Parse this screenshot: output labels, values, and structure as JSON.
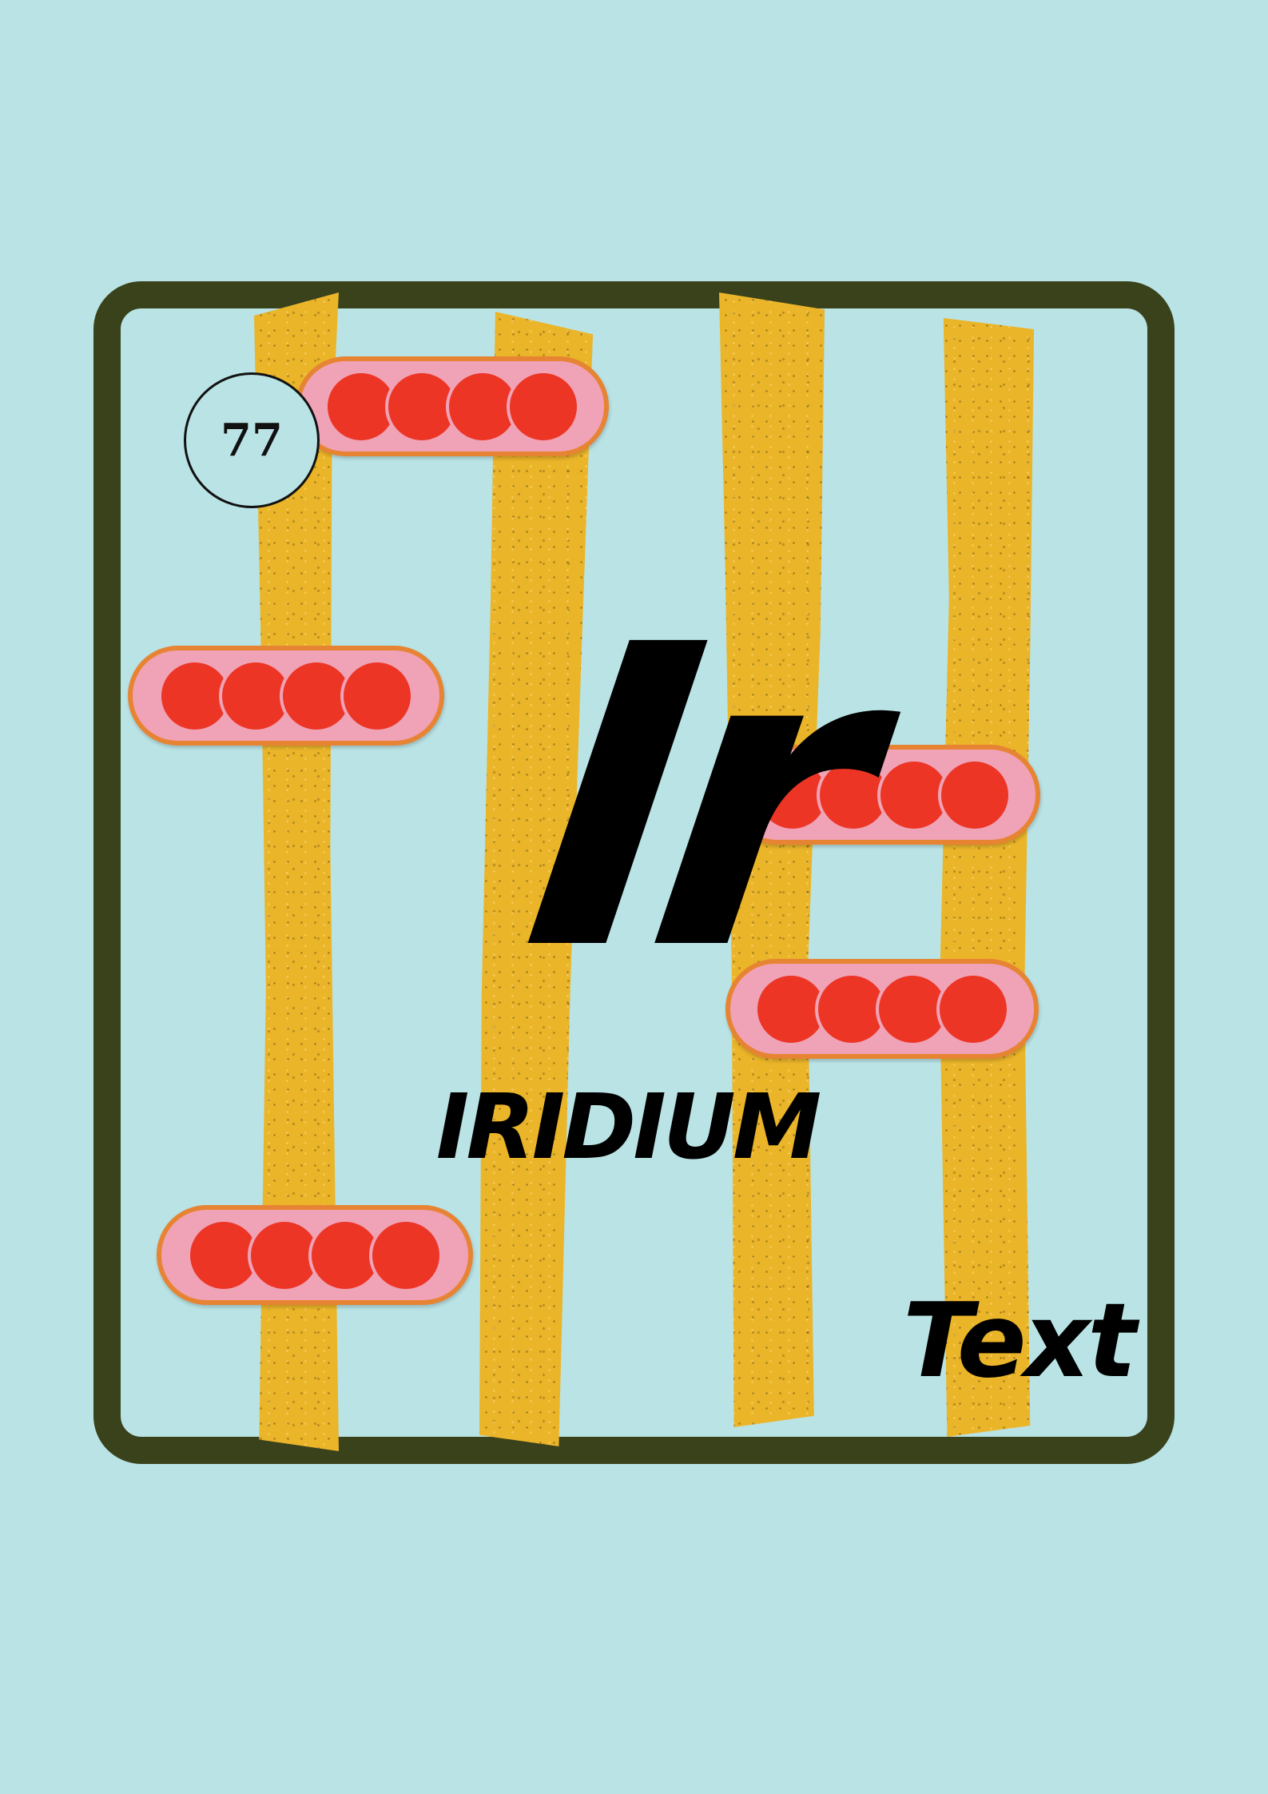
{
  "element": {
    "atomic_number": "77",
    "symbol": "Ir",
    "name": "IRIDIUM",
    "caption": "Text"
  },
  "colors": {
    "background": "#bae3e5",
    "frame": "#3a421c",
    "bars": "#ebb529",
    "bead_fill": "#ec3525",
    "bead_ring": "#f0a2b6",
    "bead_outline": "#e78433",
    "text": "#000000"
  },
  "decorations": {
    "bar_count": 4,
    "bead_groups": 5,
    "beads_per_group": 4
  }
}
